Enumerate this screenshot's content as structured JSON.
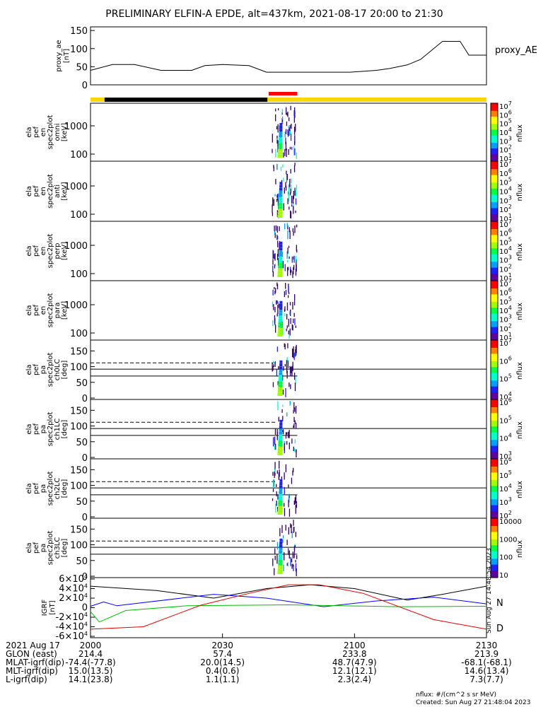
{
  "title": "PRELIMINARY ELFIN-A EPDE, alt=437km, 2021-08-17 20:00 to 21:30",
  "colors": {
    "bar_yellow": "#ffd700",
    "bar_black": "#000000",
    "bar_red": "#ff0000",
    "igrf_x": "#000000",
    "igrf_y": "#0000ff",
    "igrf_z": "#00c000",
    "igrf_d": "#e00000"
  },
  "chart_data": [
    {
      "type": "line",
      "panel": "proxy_ae",
      "ylabel": [
        "proxy_ae",
        "[nT]"
      ],
      "legend": "proxy_AE",
      "yticks": [
        "0",
        "50",
        "100",
        "150"
      ],
      "ylim": [
        0,
        160
      ],
      "x_minutes": [
        0,
        5,
        10,
        16,
        18,
        23,
        26,
        30,
        36,
        40,
        45,
        50,
        55,
        59,
        65,
        68,
        72,
        75,
        80,
        84,
        86,
        90
      ],
      "values": [
        40,
        56,
        56,
        40,
        40,
        40,
        53,
        56,
        53,
        35,
        35,
        35,
        35,
        35,
        40,
        45,
        55,
        70,
        120,
        120,
        82,
        82
      ]
    },
    {
      "type": "heatmap",
      "panel": "omni",
      "ylabel": [
        "ela",
        "pef",
        "en",
        "spec2plot",
        "omni",
        "[keV]"
      ],
      "yticks": [
        "100",
        "1000"
      ],
      "colorbar": {
        "label": "nflux",
        "ticks": [
          "10^1",
          "10^2",
          "10^3",
          "10^4",
          "10^5",
          "10^6",
          "10^7"
        ]
      }
    },
    {
      "type": "heatmap",
      "panel": "anti",
      "ylabel": [
        "ela",
        "pef",
        "en",
        "spec2plot",
        "anti",
        "[keV]"
      ],
      "yticks": [
        "100",
        "1000"
      ],
      "colorbar": {
        "label": "nflux",
        "ticks": [
          "10^1",
          "10^2",
          "10^3",
          "10^4",
          "10^5",
          "10^6",
          "10^7"
        ]
      }
    },
    {
      "type": "heatmap",
      "panel": "perp",
      "ylabel": [
        "ela",
        "pef",
        "en",
        "spec2plot",
        "perp",
        "[keV]"
      ],
      "yticks": [
        "100",
        "1000"
      ],
      "colorbar": {
        "label": "nflux",
        "ticks": [
          "10^1",
          "10^2",
          "10^3",
          "10^4",
          "10^5",
          "10^6",
          "10^7"
        ]
      }
    },
    {
      "type": "heatmap",
      "panel": "para",
      "ylabel": [
        "ela",
        "pef",
        "en",
        "spec2plot",
        "para",
        "[keV]"
      ],
      "yticks": [
        "100",
        "1000"
      ],
      "colorbar": {
        "label": "nflux",
        "ticks": [
          "10^1",
          "10^2",
          "10^3",
          "10^4",
          "10^5",
          "10^6",
          "10^7"
        ]
      }
    },
    {
      "type": "heatmap",
      "panel": "ch0LC",
      "ylabel": [
        "ela",
        "pef",
        "pa",
        "spec2plot",
        "ch0LC",
        "[deg]"
      ],
      "yticks": [
        "0",
        "50",
        "100",
        "150"
      ],
      "colorbar": {
        "label": "nflux",
        "ticks": [
          "10^4",
          "10^5",
          "10^6",
          "10^7"
        ]
      }
    },
    {
      "type": "heatmap",
      "panel": "ch1LC",
      "ylabel": [
        "ela",
        "pef",
        "pa",
        "spec2plot",
        "ch1LC",
        "[deg]"
      ],
      "yticks": [
        "0",
        "50",
        "100",
        "150"
      ],
      "colorbar": {
        "label": "nflux",
        "ticks": [
          "10^3",
          "10^4",
          "10^5",
          "10^6"
        ]
      }
    },
    {
      "type": "heatmap",
      "panel": "ch2LC",
      "ylabel": [
        "ela",
        "pef",
        "pa",
        "spec2plot",
        "ch2LC",
        "[deg]"
      ],
      "yticks": [
        "0",
        "50",
        "100",
        "150"
      ],
      "colorbar": {
        "label": "nflux",
        "ticks": [
          "10^2",
          "10^3",
          "10^4",
          "10^5",
          "10^6"
        ]
      }
    },
    {
      "type": "heatmap",
      "panel": "ch3LC",
      "ylabel": [
        "ela",
        "pef",
        "pa",
        "spec2plot",
        "ch3LC",
        "[deg]"
      ],
      "yticks": [
        "0",
        "50",
        "100",
        "150"
      ],
      "colorbar": {
        "label": "nflux",
        "ticks": [
          "10",
          "100",
          "1000",
          "10000"
        ]
      }
    },
    {
      "type": "line",
      "panel": "igrf",
      "ylabel": [
        "IGRF",
        "[nT]"
      ],
      "yticks": [
        "-6×10^4",
        "-4×10^4",
        "-2×10^4",
        "0",
        "2×10^4",
        "4×10^4",
        "6×10^4"
      ],
      "ylim": [
        -60000,
        60000
      ],
      "legend": [
        "N",
        "D"
      ],
      "side_note": "Sun Aug 27 14:48:54 2023"
    }
  ],
  "xaxis": {
    "labels": [
      "2021 Aug 17",
      "GLON (east)",
      "MLAT-igrf(dip)",
      "MLT-igrf(dip)",
      "L-igrf(dip)"
    ],
    "columns": [
      [
        "2000",
        "214.4",
        "-74.4(-77.8)",
        "15.0(13.5)",
        "14.1(23.8)"
      ],
      [
        "2030",
        "57.4",
        "20.0(14.5)",
        "0.4(0.6)",
        "1.1(1.1)"
      ],
      [
        "2100",
        "233.8",
        "48.7(47.9)",
        "12.1(12.1)",
        "2.3(2.4)"
      ],
      [
        "2130",
        "213.9",
        "-68.1(-68.1)",
        "14.6(13.4)",
        "7.3(7.7)"
      ]
    ]
  },
  "footer": {
    "units": "nflux: #/(cm^2 s sr MeV)",
    "created": "Created: Sun Aug 27 21:48:04 2023"
  }
}
